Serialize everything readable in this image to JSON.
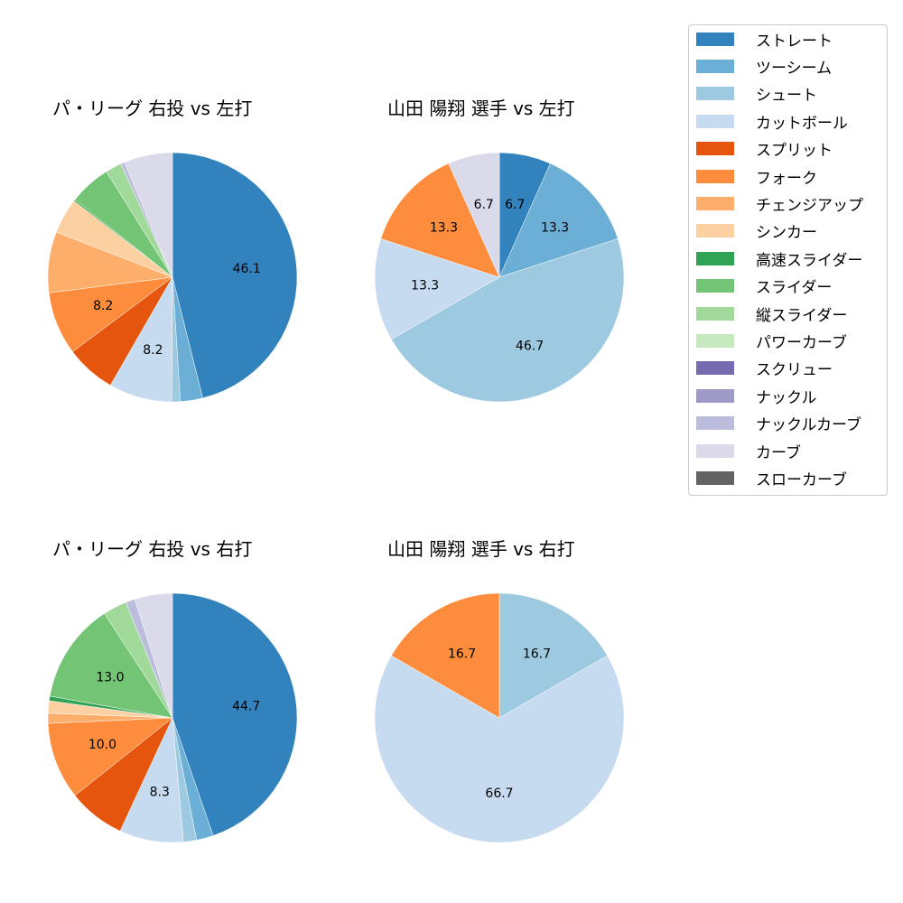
{
  "chart_data": [
    {
      "type": "pie",
      "title": "パ・リーグ 右投 vs 左打",
      "categories": [
        "ストレート",
        "ツーシーム",
        "シュート",
        "カットボール",
        "スプリット",
        "フォーク",
        "チェンジアップ",
        "シンカー",
        "高速スライダー",
        "スライダー",
        "縦スライダー",
        "パワーカーブ",
        "スクリュー",
        "ナックル",
        "ナックルカーブ",
        "カーブ",
        "スローカーブ"
      ],
      "values": [
        46.1,
        2.9,
        1.1,
        8.2,
        6.5,
        8.2,
        7.9,
        4.6,
        0.2,
        5.4,
        2.1,
        0,
        0,
        0,
        0.5,
        6.3,
        0
      ],
      "labels_shown": [
        "46.1",
        "8.2",
        "8.2"
      ],
      "start_angle": 90,
      "direction": "clockwise"
    },
    {
      "type": "pie",
      "title": "山田 陽翔 選手 vs 左打",
      "categories": [
        "ストレート",
        "ツーシーム",
        "シュート",
        "カットボール",
        "フォーク",
        "カーブ"
      ],
      "values": [
        6.7,
        13.3,
        46.7,
        13.3,
        13.3,
        6.7
      ],
      "labels_shown": [
        "6.7",
        "13.3",
        "46.7",
        "13.3",
        "13.3",
        "6.7"
      ],
      "start_angle": 90,
      "direction": "clockwise"
    },
    {
      "type": "pie",
      "title": "パ・リーグ 右投 vs 右打",
      "categories": [
        "ストレート",
        "ツーシーム",
        "シュート",
        "カットボール",
        "スプリット",
        "フォーク",
        "チェンジアップ",
        "シンカー",
        "高速スライダー",
        "スライダー",
        "縦スライダー",
        "パワーカーブ",
        "スクリュー",
        "ナックル",
        "ナックルカーブ",
        "カーブ",
        "スローカーブ"
      ],
      "values": [
        44.7,
        2.2,
        1.7,
        8.3,
        7.4,
        10.0,
        1.3,
        1.6,
        0.6,
        13.0,
        3.1,
        0,
        0,
        0,
        1.2,
        4.9,
        0
      ],
      "labels_shown": [
        "44.7",
        "8.3",
        "10.0",
        "13.0"
      ],
      "start_angle": 90,
      "direction": "clockwise"
    },
    {
      "type": "pie",
      "title": "山田 陽翔 選手 vs 右打",
      "categories": [
        "シュート",
        "カットボール",
        "フォーク"
      ],
      "values": [
        16.7,
        66.7,
        16.7
      ],
      "labels_shown": [
        "16.7",
        "66.7",
        "16.7"
      ],
      "start_angle": 90,
      "direction": "clockwise"
    }
  ],
  "titles": {
    "top_left": "パ・リーグ 右投 vs 左打",
    "top_right": "山田 陽翔 選手 vs 左打",
    "bottom_left": "パ・リーグ 右投 vs 右打",
    "bottom_right": "山田 陽翔 選手 vs 右打"
  },
  "legend": {
    "position": "upper right",
    "items": [
      {
        "label": "ストレート",
        "color": "#3182bd"
      },
      {
        "label": "ツーシーム",
        "color": "#6baed6"
      },
      {
        "label": "シュート",
        "color": "#9ecae1"
      },
      {
        "label": "カットボール",
        "color": "#c6dbef"
      },
      {
        "label": "スプリット",
        "color": "#e6550d"
      },
      {
        "label": "フォーク",
        "color": "#fd8d3c"
      },
      {
        "label": "チェンジアップ",
        "color": "#fdae6b"
      },
      {
        "label": "シンカー",
        "color": "#fdd0a2"
      },
      {
        "label": "高速スライダー",
        "color": "#31a354"
      },
      {
        "label": "スライダー",
        "color": "#74c476"
      },
      {
        "label": "縦スライダー",
        "color": "#a1d99b"
      },
      {
        "label": "パワーカーブ",
        "color": "#c7e9c0"
      },
      {
        "label": "スクリュー",
        "color": "#756bb1"
      },
      {
        "label": "ナックル",
        "color": "#9e9ac8"
      },
      {
        "label": "ナックルカーブ",
        "color": "#bcbddc"
      },
      {
        "label": "カーブ",
        "color": "#dadaeb"
      },
      {
        "label": "スローカーブ",
        "color": "#636363"
      }
    ]
  }
}
